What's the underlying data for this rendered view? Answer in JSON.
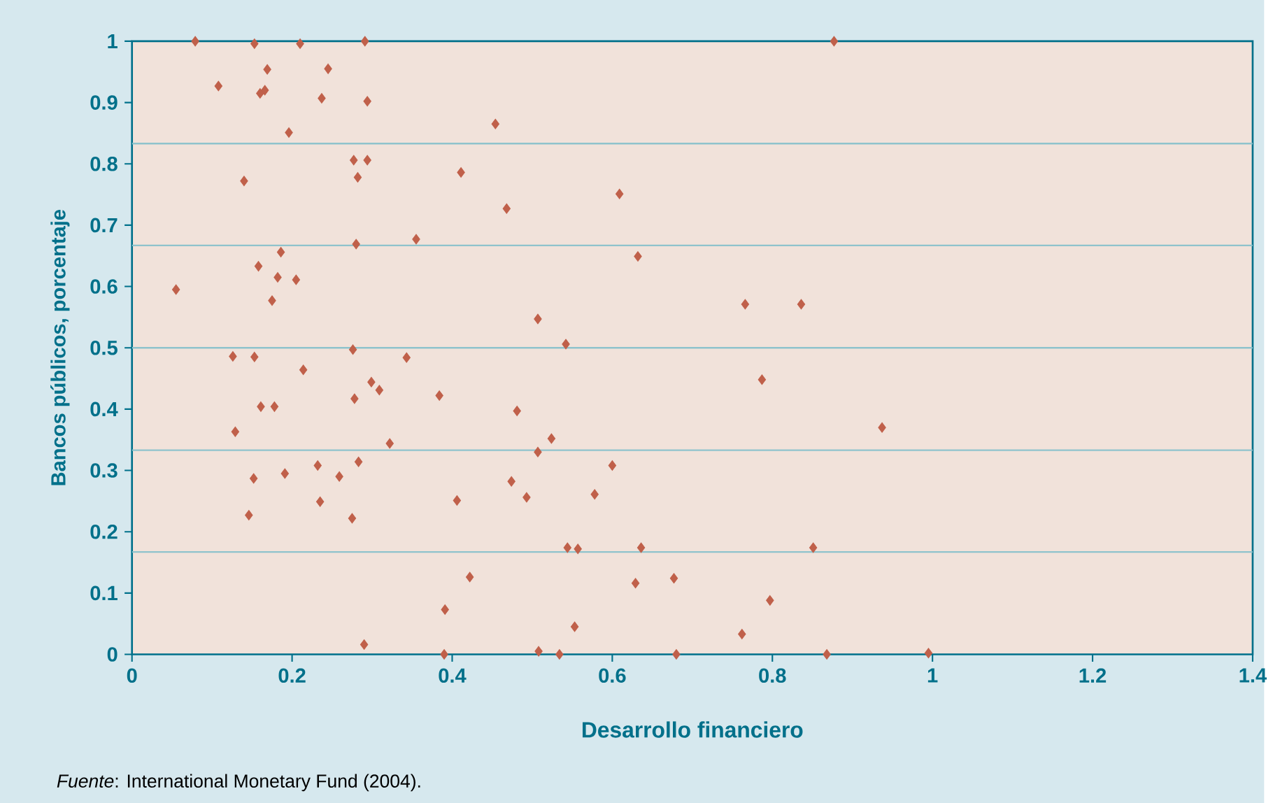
{
  "chart_data": {
    "type": "scatter",
    "xlabel": "Desarrollo financiero",
    "ylabel": "Bancos públicos, porcentaje",
    "annotations": [
      "*Fuente*: International Monetary Fund (2004)."
    ],
    "xlim": [
      0,
      1.4
    ],
    "ylim": [
      0,
      1
    ],
    "xticks": [
      0,
      0.2,
      0.4,
      0.6,
      0.8,
      1,
      1.2,
      1.4
    ],
    "yticks": [
      0,
      0.1,
      0.2,
      0.3,
      0.4,
      0.5,
      0.6,
      0.7,
      0.8,
      0.9,
      1
    ],
    "grid": false,
    "marker": "diamond",
    "ref_lines": [
      {
        "axis": "y",
        "value": 0.167,
        "color": "#8fc3cc"
      },
      {
        "axis": "y",
        "value": 0.333,
        "color": "#8fc3cc"
      },
      {
        "axis": "y",
        "value": 0.5,
        "color": "#8fc3cc"
      },
      {
        "axis": "y",
        "value": 0.667,
        "color": "#8fc3cc"
      },
      {
        "axis": "y",
        "value": 0.833,
        "color": "#8fc3cc"
      }
    ],
    "series": [
      {
        "color": "#c0604a",
        "x": [
          0.079,
          0.153,
          0.21,
          0.291,
          0.877,
          0.169,
          0.245,
          0.108,
          0.16,
          0.166,
          0.237,
          0.294,
          0.454,
          0.196,
          0.277,
          0.294,
          0.411,
          0.282,
          0.14,
          0.468,
          0.28,
          0.355,
          0.186,
          0.158,
          0.182,
          0.205,
          0.055,
          0.175,
          0.507,
          0.609,
          0.632,
          0.766,
          0.836,
          0.542,
          0.787,
          0.937,
          0.524,
          0.6,
          0.578,
          0.544,
          0.557,
          0.636,
          0.851,
          0.629,
          0.677,
          0.797,
          0.553,
          0.762,
          0.534,
          0.68,
          0.868,
          0.995,
          0.126,
          0.153,
          0.276,
          0.343,
          0.214,
          0.299,
          0.309,
          0.384,
          0.278,
          0.481,
          0.161,
          0.178,
          0.129,
          0.322,
          0.507,
          0.283,
          0.191,
          0.152,
          0.232,
          0.259,
          0.474,
          0.493,
          0.235,
          0.406,
          0.146,
          0.275,
          0.422,
          0.391,
          0.29,
          0.39,
          0.508
        ],
        "values": [
          1.0,
          0.996,
          0.996,
          1.0,
          1.0,
          0.954,
          0.955,
          0.927,
          0.915,
          0.92,
          0.907,
          0.902,
          0.865,
          0.851,
          0.806,
          0.806,
          0.786,
          0.778,
          0.772,
          0.727,
          0.669,
          0.677,
          0.656,
          0.633,
          0.615,
          0.611,
          0.595,
          0.577,
          0.547,
          0.751,
          0.649,
          0.571,
          0.571,
          0.506,
          0.448,
          0.37,
          0.352,
          0.308,
          0.261,
          0.174,
          0.172,
          0.174,
          0.174,
          0.116,
          0.124,
          0.088,
          0.045,
          0.033,
          0.0,
          0.0,
          0.0,
          0.002,
          0.486,
          0.485,
          0.497,
          0.484,
          0.464,
          0.444,
          0.431,
          0.422,
          0.417,
          0.397,
          0.404,
          0.404,
          0.363,
          0.344,
          0.33,
          0.314,
          0.295,
          0.287,
          0.308,
          0.29,
          0.282,
          0.256,
          0.249,
          0.251,
          0.227,
          0.222,
          0.126,
          0.073,
          0.016,
          0.0,
          0.005
        ]
      }
    ]
  }
}
